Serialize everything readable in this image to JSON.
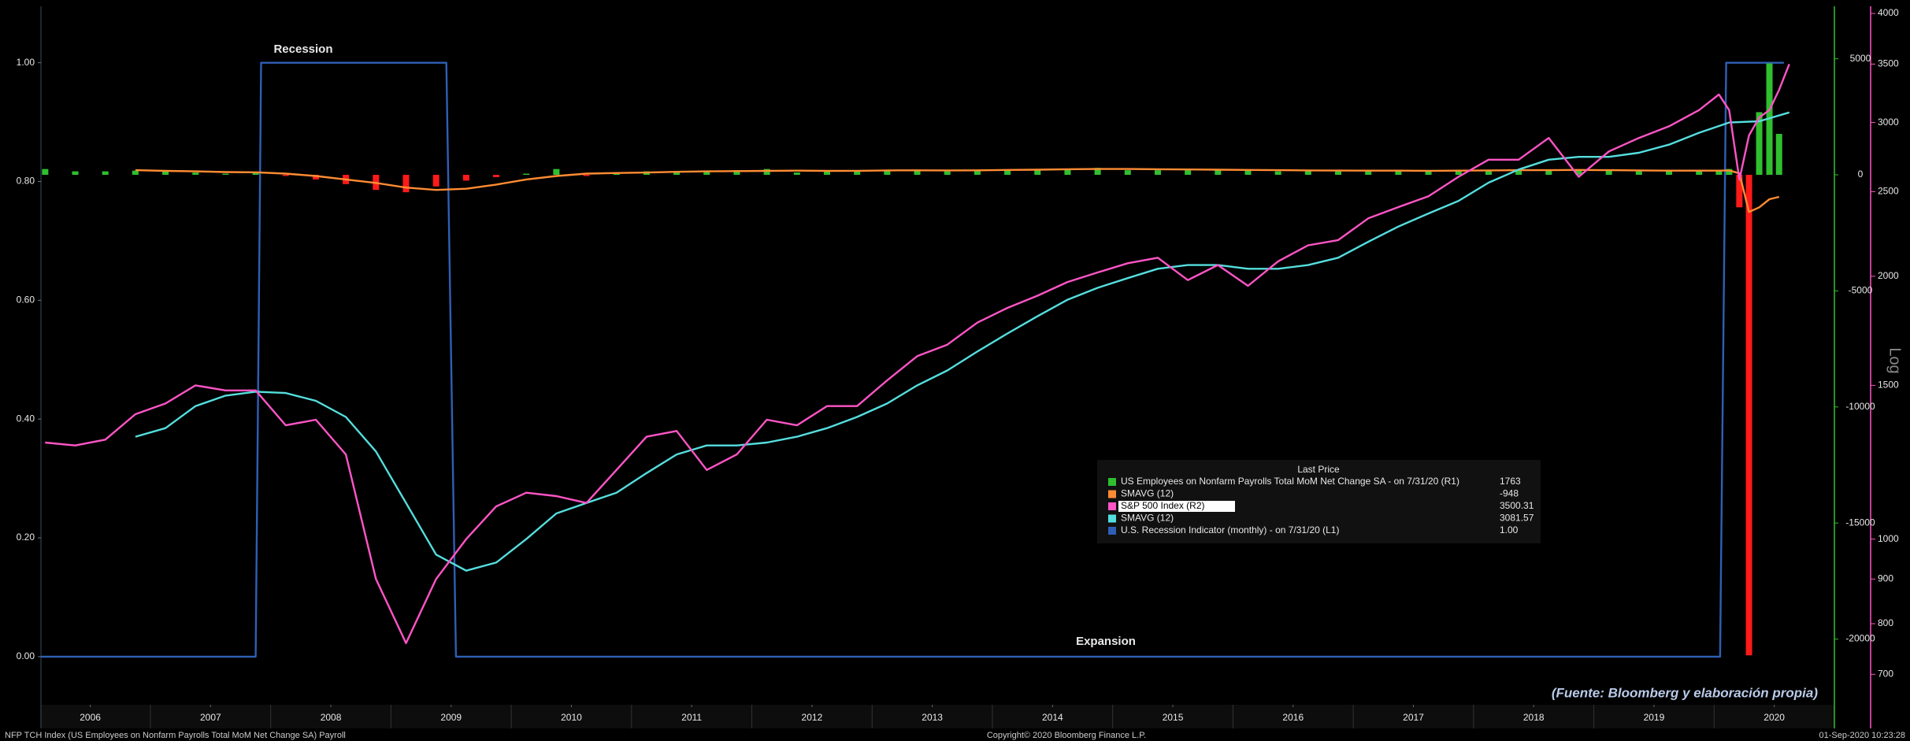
{
  "chart_data": {
    "type": "combo",
    "annotations": [
      "Recession",
      "Expansion",
      "(Fuente: Bloomberg y elaboración propia)"
    ],
    "footer": {
      "left": "NFP TCH Index (US Employees on Nonfarm Payrolls Total MoM Net Change SA) Payroll",
      "center": "Copyright© 2020 Bloomberg Finance L.P.",
      "right": "01-Sep-2020 10:23:28"
    },
    "legend_title": "Last Price",
    "xlim": [
      2006.09,
      2021.0
    ],
    "xticks": [
      {
        "value": 2006.5,
        "label": "2006"
      },
      {
        "value": 2007.5,
        "label": "2007"
      },
      {
        "value": 2008.5,
        "label": "2008"
      },
      {
        "value": 2009.5,
        "label": "2009"
      },
      {
        "value": 2010.5,
        "label": "2010"
      },
      {
        "value": 2011.5,
        "label": "2011"
      },
      {
        "value": 2012.5,
        "label": "2012"
      },
      {
        "value": 2013.5,
        "label": "2013"
      },
      {
        "value": 2014.5,
        "label": "2014"
      },
      {
        "value": 2015.5,
        "label": "2015"
      },
      {
        "value": 2016.5,
        "label": "2016"
      },
      {
        "value": 2017.5,
        "label": "2017"
      },
      {
        "value": 2018.5,
        "label": "2018"
      },
      {
        "value": 2019.5,
        "label": "2019"
      },
      {
        "value": 2020.5,
        "label": "2020"
      }
    ],
    "ylim": [
      -0.081,
      1.095
    ],
    "yticks": [
      {
        "value": 0,
        "label": "0.00"
      },
      {
        "value": 0.2,
        "label": "0.20"
      },
      {
        "value": 0.4,
        "label": "0.40"
      },
      {
        "value": 0.6,
        "label": "0.60"
      },
      {
        "value": 0.8,
        "label": "0.80"
      },
      {
        "value": 1,
        "label": "1.00"
      }
    ],
    "y2lim": [
      -22830,
      7260
    ],
    "y2ticks": [
      -20000,
      -15000,
      -10000,
      -5000,
      0,
      5000
    ],
    "y3lim": [
      646,
      4076
    ],
    "y3ticks": [
      700,
      800,
      900,
      1000,
      1500,
      2000,
      2500,
      3000,
      3500,
      4000
    ],
    "y3log": true,
    "y3label": "Log",
    "grid": false,
    "series": [
      {
        "name": "US Employees on Nonfarm Payrolls Total MoM Net Change SA -  on 7/31/20  (R1)",
        "type": "bar",
        "axis": "y2",
        "color": "#2fbf2f",
        "negative_color": "#ff1a1a",
        "last_price": 1763,
        "x": [
          2006.125,
          2006.375,
          2006.625,
          2006.875,
          2007.125,
          2007.375,
          2007.625,
          2007.875,
          2008.125,
          2008.375,
          2008.625,
          2008.875,
          2009.125,
          2009.375,
          2009.625,
          2009.875,
          2010.125,
          2010.375,
          2010.625,
          2010.875,
          2011.125,
          2011.375,
          2011.625,
          2011.875,
          2012.125,
          2012.375,
          2012.625,
          2012.875,
          2013.125,
          2013.375,
          2013.625,
          2013.875,
          2014.125,
          2014.375,
          2014.625,
          2014.875,
          2015.125,
          2015.375,
          2015.625,
          2015.875,
          2016.125,
          2016.375,
          2016.625,
          2016.875,
          2017.125,
          2017.375,
          2017.625,
          2017.875,
          2018.125,
          2018.375,
          2018.625,
          2018.875,
          2019.125,
          2019.375,
          2019.625,
          2019.875,
          2020.04,
          2020.125,
          2020.21,
          2020.29,
          2020.375,
          2020.46,
          2020.54
        ],
        "values": [
          250,
          150,
          150,
          180,
          150,
          100,
          50,
          100,
          -50,
          -200,
          -400,
          -650,
          -750,
          -500,
          -250,
          -100,
          50,
          250,
          -50,
          100,
          150,
          100,
          150,
          200,
          250,
          100,
          150,
          200,
          200,
          200,
          150,
          200,
          200,
          250,
          250,
          300,
          200,
          200,
          200,
          250,
          200,
          150,
          200,
          150,
          180,
          180,
          150,
          200,
          200,
          200,
          200,
          200,
          180,
          150,
          180,
          190,
          210,
          250,
          -1400,
          -20700,
          2700,
          4800,
          1763
        ]
      },
      {
        "name": "SMAVG (12)",
        "type": "line",
        "axis": "y2",
        "color": "#ff8c33",
        "last_price": -948,
        "x": [
          2006.875,
          2007.125,
          2007.375,
          2007.625,
          2007.875,
          2008.125,
          2008.375,
          2008.625,
          2008.875,
          2009.125,
          2009.375,
          2009.625,
          2009.875,
          2010.125,
          2010.375,
          2010.625,
          2010.875,
          2011.125,
          2011.375,
          2011.625,
          2011.875,
          2012.125,
          2012.375,
          2012.625,
          2012.875,
          2013.125,
          2013.375,
          2013.625,
          2013.875,
          2014.125,
          2014.375,
          2014.625,
          2014.875,
          2015.125,
          2015.375,
          2015.625,
          2015.875,
          2016.125,
          2016.375,
          2016.625,
          2016.875,
          2017.125,
          2017.375,
          2017.625,
          2017.875,
          2018.125,
          2018.375,
          2018.625,
          2018.875,
          2019.125,
          2019.375,
          2019.625,
          2019.875,
          2020.04,
          2020.125,
          2020.21,
          2020.29,
          2020.375,
          2020.46,
          2020.54
        ],
        "values": [
          200,
          170,
          150,
          120,
          110,
          50,
          -50,
          -200,
          -350,
          -550,
          -650,
          -600,
          -420,
          -200,
          -50,
          50,
          80,
          100,
          130,
          150,
          160,
          170,
          180,
          170,
          175,
          190,
          195,
          190,
          195,
          210,
          220,
          240,
          250,
          250,
          240,
          230,
          220,
          210,
          200,
          190,
          185,
          180,
          180,
          175,
          180,
          190,
          200,
          200,
          210,
          200,
          190,
          180,
          180,
          180,
          190,
          60,
          -1600,
          -1400,
          -1050,
          -948
        ]
      },
      {
        "name": "S&P 500 Index  (R2)",
        "type": "line",
        "axis": "y3",
        "color": "#ff55c6",
        "highlight": true,
        "last_price": 3500.31,
        "x": [
          2006.125,
          2006.375,
          2006.625,
          2006.875,
          2007.125,
          2007.375,
          2007.625,
          2007.875,
          2008.125,
          2008.375,
          2008.625,
          2008.875,
          2009.125,
          2009.375,
          2009.625,
          2009.875,
          2010.125,
          2010.375,
          2010.625,
          2010.875,
          2011.125,
          2011.375,
          2011.625,
          2011.875,
          2012.125,
          2012.375,
          2012.625,
          2012.875,
          2013.125,
          2013.375,
          2013.625,
          2013.875,
          2014.125,
          2014.375,
          2014.625,
          2014.875,
          2015.125,
          2015.375,
          2015.625,
          2015.875,
          2016.125,
          2016.375,
          2016.625,
          2016.875,
          2017.125,
          2017.375,
          2017.625,
          2017.875,
          2018.125,
          2018.375,
          2018.625,
          2018.875,
          2019.125,
          2019.375,
          2019.625,
          2019.875,
          2020.04,
          2020.125,
          2020.21,
          2020.29,
          2020.375,
          2020.46,
          2020.54,
          2020.625
        ],
        "values": [
          1290,
          1280,
          1300,
          1390,
          1430,
          1500,
          1480,
          1480,
          1350,
          1370,
          1250,
          900,
          760,
          900,
          1000,
          1090,
          1130,
          1120,
          1100,
          1200,
          1310,
          1330,
          1200,
          1250,
          1370,
          1350,
          1420,
          1420,
          1520,
          1620,
          1670,
          1770,
          1840,
          1900,
          1970,
          2020,
          2070,
          2100,
          1980,
          2060,
          1950,
          2080,
          2170,
          2200,
          2330,
          2400,
          2470,
          2600,
          2720,
          2720,
          2880,
          2600,
          2780,
          2880,
          2970,
          3100,
          3230,
          3100,
          2580,
          2900,
          3040,
          3100,
          3270,
          3500
        ]
      },
      {
        "name": "SMAVG (12)",
        "type": "line",
        "axis": "y3",
        "color": "#55dede",
        "last_price": 3081.57,
        "x": [
          2006.875,
          2007.125,
          2007.375,
          2007.625,
          2007.875,
          2008.125,
          2008.375,
          2008.625,
          2008.875,
          2009.125,
          2009.375,
          2009.625,
          2009.875,
          2010.125,
          2010.375,
          2010.625,
          2010.875,
          2011.125,
          2011.375,
          2011.625,
          2011.875,
          2012.125,
          2012.375,
          2012.625,
          2012.875,
          2013.125,
          2013.375,
          2013.625,
          2013.875,
          2014.125,
          2014.375,
          2014.625,
          2014.875,
          2015.125,
          2015.375,
          2015.625,
          2015.875,
          2016.125,
          2016.375,
          2016.625,
          2016.875,
          2017.125,
          2017.375,
          2017.625,
          2017.875,
          2018.125,
          2018.375,
          2018.625,
          2018.875,
          2019.125,
          2019.375,
          2019.625,
          2019.875,
          2020.125,
          2020.375,
          2020.625
        ],
        "values": [
          1310,
          1340,
          1420,
          1460,
          1475,
          1470,
          1440,
          1380,
          1260,
          1100,
          960,
          920,
          940,
          1000,
          1070,
          1100,
          1130,
          1190,
          1250,
          1280,
          1280,
          1290,
          1310,
          1340,
          1380,
          1430,
          1500,
          1560,
          1640,
          1720,
          1800,
          1880,
          1940,
          1990,
          2040,
          2060,
          2060,
          2040,
          2040,
          2060,
          2100,
          2190,
          2280,
          2360,
          2440,
          2560,
          2650,
          2720,
          2740,
          2740,
          2770,
          2830,
          2920,
          3000,
          3010,
          3081
        ]
      },
      {
        "name": "U.S. Recession Indicator (monthly) -  on 7/31/20  (L1)",
        "type": "line",
        "axis": "y",
        "color": "#2f5fb5",
        "last_price": {
          "value": 1,
          "label": "1.00"
        },
        "x": [
          2006.09,
          2007.875,
          2007.92,
          2009.46,
          2009.54,
          2020.05,
          2020.1,
          2020.58
        ],
        "values": [
          0,
          0,
          1,
          1,
          0,
          0,
          1,
          1
        ]
      }
    ]
  }
}
